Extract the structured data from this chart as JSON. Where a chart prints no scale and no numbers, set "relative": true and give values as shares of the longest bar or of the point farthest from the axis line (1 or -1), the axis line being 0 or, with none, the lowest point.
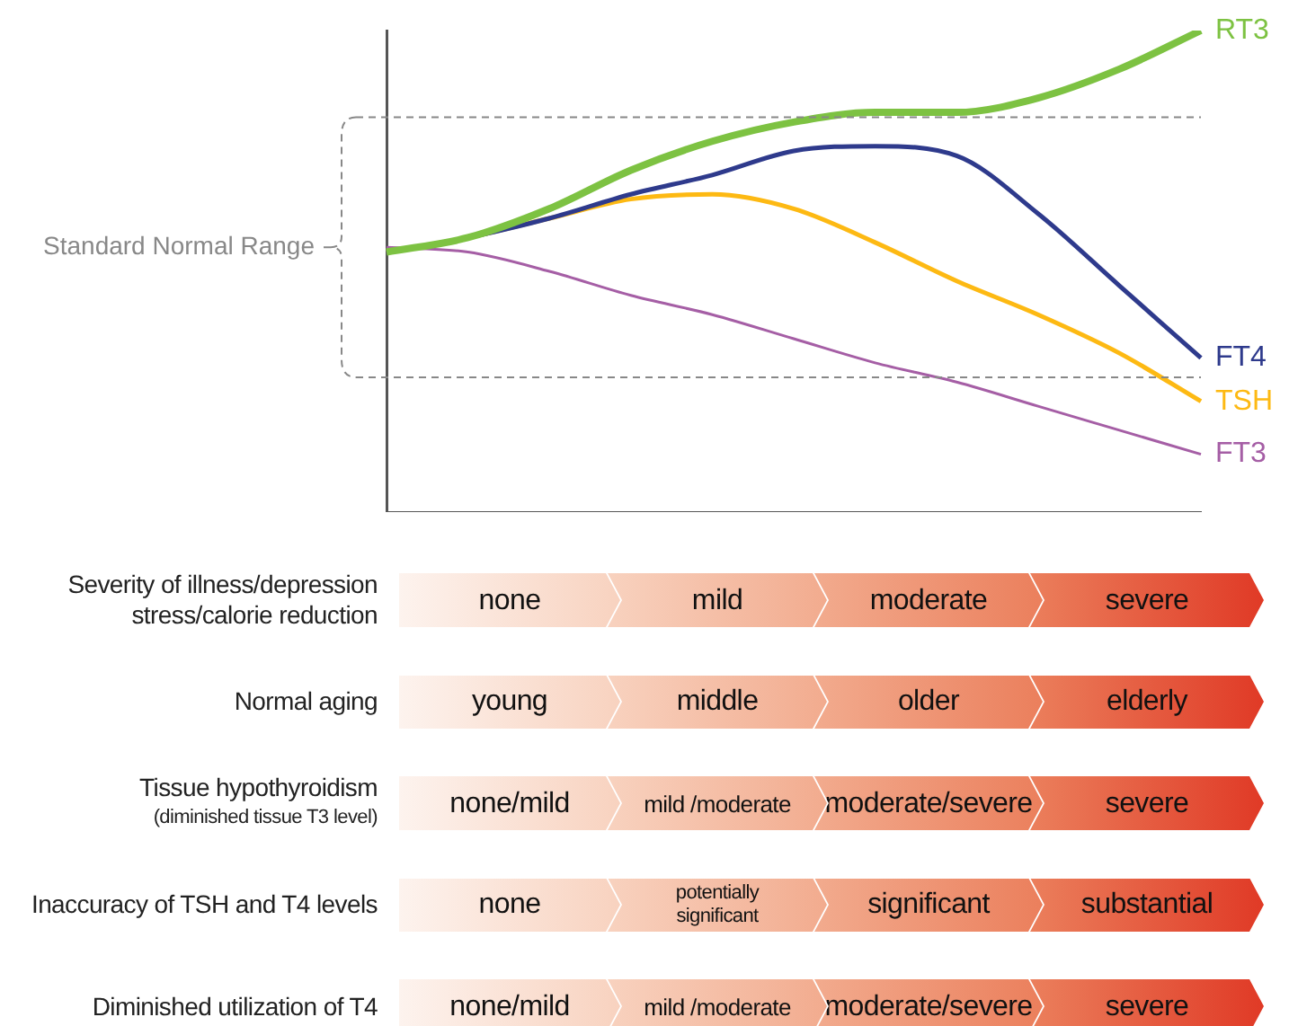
{
  "chart_data": [
    {
      "type": "line",
      "relative": true,
      "legend": false,
      "grid": false,
      "marker": "none",
      "categories": [
        null,
        null,
        null,
        null,
        null,
        null,
        null,
        null,
        null,
        null,
        null
      ],
      "series": [
        {
          "name": "RT3",
          "color": "#7dc242",
          "values": [
            0.54,
            0.57,
            0.63,
            0.71,
            0.77,
            0.81,
            0.83,
            0.83,
            0.86,
            0.92,
            1
          ]
        },
        {
          "name": "FT4",
          "color": "#2e3a8c",
          "values": [
            0.54,
            0.57,
            0.61,
            0.66,
            0.7,
            0.75,
            0.76,
            0.74,
            0.62,
            0.47,
            0.32
          ]
        },
        {
          "name": "TSH",
          "color": "#fdb913",
          "values": [
            0.54,
            0.57,
            0.61,
            0.65,
            0.66,
            0.63,
            0.56,
            0.48,
            0.41,
            0.33,
            0.23
          ]
        },
        {
          "name": "FT3",
          "color": "#a55ea5",
          "values": [
            0.55,
            0.54,
            0.5,
            0.45,
            0.41,
            0.36,
            0.31,
            0.27,
            0.22,
            0.17,
            0.12
          ]
        }
      ],
      "ref_lines": [
        {
          "axis": "y",
          "value": 0.82,
          "color": "#888888",
          "line_style": "dashed"
        },
        {
          "axis": "y",
          "value": 0.28,
          "color": "#888888",
          "line_style": "dashed"
        }
      ],
      "annotations": [
        "Standard Normal Range"
      ]
    },
    {
      "type": "other",
      "annotations": [
        "Severity of illness/depression stress/calorie reduction",
        "none",
        "mild",
        "moderate",
        "severe",
        "Normal aging",
        "young",
        "middle",
        "older",
        "elderly",
        "Tissue hypothyroidism\n(diminished tissue T3 level)",
        "none/mild",
        "mild /moderate",
        "moderate/severe",
        "severe",
        "Inaccuracy of TSH and T4 levels",
        "none",
        "potentially significant",
        "significant",
        "substantial",
        "Diminished utilization of T4",
        "none/mild",
        "mild /moderate",
        "moderate/severe",
        "severe"
      ]
    }
  ]
}
